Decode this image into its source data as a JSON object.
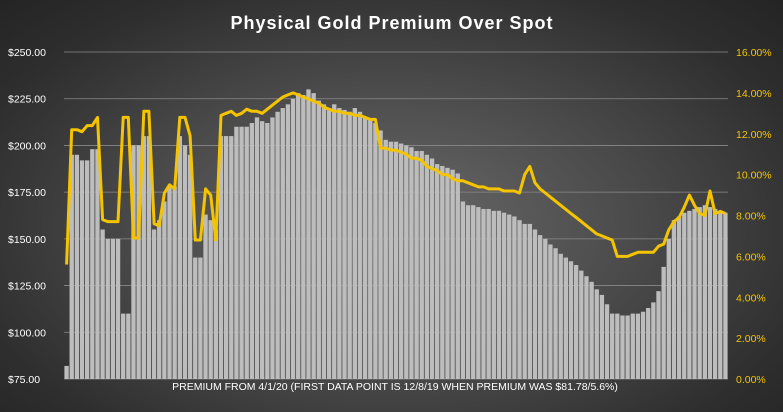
{
  "chart_data": {
    "type": "bar",
    "title": "Physical Gold Premium Over Spot",
    "xlabel": "PREMIUM FROM 4/1/20 (FIRST DATA POINT IS 12/8/19 WHEN PREMIUM WAS $81.78/5.6%)",
    "ylabel": "",
    "ylim": [
      75,
      250
    ],
    "y2lim": [
      0,
      16
    ],
    "y_ticks": [
      "$75.00",
      "$100.00",
      "$125.00",
      "$150.00",
      "$175.00",
      "$200.00",
      "$225.00",
      "$250.00"
    ],
    "y2_ticks": [
      "0.00%",
      "2.00%",
      "4.00%",
      "6.00%",
      "8.00%",
      "10.00%",
      "12.00%",
      "14.00%",
      "16.00%"
    ],
    "grid": true,
    "colors": {
      "bars": "#bdbdbd",
      "line": "#f5c400",
      "right_axis": "#f5c400",
      "left_axis": "#ffffff"
    },
    "series": [
      {
        "axis": "left",
        "type": "bar",
        "values": [
          82,
          195,
          195,
          192,
          192,
          198,
          198,
          155,
          150,
          150,
          150,
          110,
          110,
          200,
          200,
          205,
          205,
          155,
          160,
          170,
          178,
          178,
          205,
          200,
          195,
          140,
          140,
          163,
          160,
          155,
          205,
          205,
          205,
          210,
          210,
          210,
          212,
          215,
          213,
          212,
          215,
          218,
          220,
          222,
          225,
          228,
          227,
          230,
          228,
          224,
          222,
          220,
          222,
          220,
          219,
          218,
          220,
          218,
          215,
          214,
          212,
          208,
          203,
          202,
          202,
          201,
          200,
          199,
          197,
          197,
          195,
          193,
          190,
          189,
          188,
          187,
          185,
          170,
          168,
          168,
          167,
          166,
          166,
          165,
          165,
          164,
          163,
          162,
          160,
          158,
          158,
          155,
          152,
          150,
          147,
          145,
          142,
          140,
          138,
          136,
          133,
          130,
          127,
          123,
          120,
          115,
          110,
          110,
          109,
          109,
          110,
          110,
          111,
          113,
          116,
          122,
          135,
          150,
          160,
          162,
          164,
          165,
          166,
          167,
          168,
          167,
          166,
          165,
          164
        ]
      },
      {
        "axis": "right",
        "type": "line",
        "values": [
          5.6,
          12.2,
          12.2,
          12.1,
          12.4,
          12.4,
          12.8,
          7.8,
          7.7,
          7.7,
          7.7,
          12.8,
          12.8,
          6.9,
          6.9,
          13.1,
          13.1,
          7.6,
          7.5,
          9.1,
          9.5,
          9.3,
          12.8,
          12.8,
          11.9,
          6.8,
          6.8,
          9.3,
          9.0,
          6.8,
          12.9,
          13.0,
          13.1,
          12.9,
          13.0,
          13.2,
          13.1,
          13.1,
          13.0,
          13.2,
          13.4,
          13.6,
          13.8,
          13.9,
          14.0,
          13.9,
          13.8,
          13.7,
          13.6,
          13.5,
          13.3,
          13.2,
          13.1,
          13.1,
          13.0,
          13.0,
          12.9,
          12.9,
          12.8,
          12.7,
          12.7,
          11.3,
          11.3,
          11.2,
          11.2,
          11.1,
          11.0,
          10.8,
          10.8,
          10.7,
          10.4,
          10.3,
          10.2,
          10.0,
          10.0,
          9.8,
          9.7,
          9.7,
          9.6,
          9.5,
          9.4,
          9.4,
          9.3,
          9.3,
          9.3,
          9.2,
          9.2,
          9.2,
          9.1,
          10.0,
          10.4,
          9.6,
          9.3,
          9.1,
          8.9,
          8.7,
          8.5,
          8.3,
          8.1,
          7.9,
          7.7,
          7.5,
          7.3,
          7.1,
          7.0,
          6.9,
          6.8,
          6.0,
          6.0,
          6.0,
          6.1,
          6.2,
          6.2,
          6.2,
          6.2,
          6.5,
          6.6,
          7.3,
          7.7,
          7.9,
          8.4,
          9.0,
          8.5,
          8.1,
          8.0,
          9.2,
          8.1,
          8.2,
          8.1
        ]
      }
    ]
  }
}
